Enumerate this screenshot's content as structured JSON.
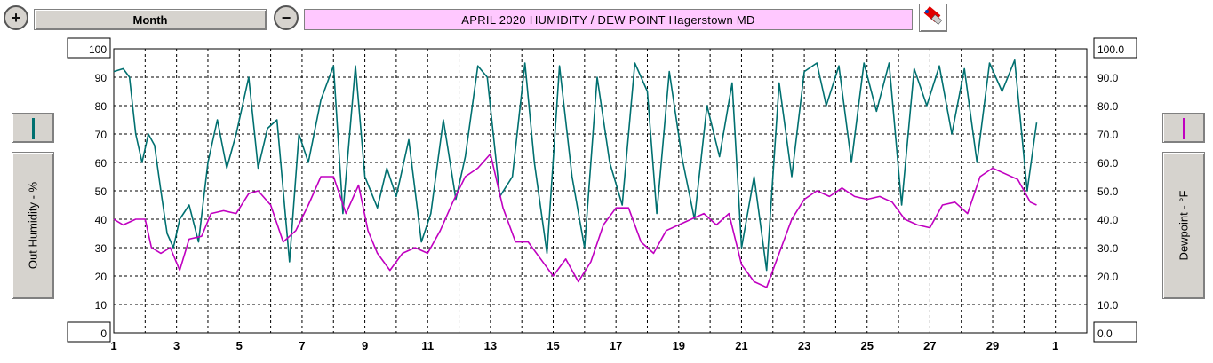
{
  "toolbar": {
    "period_label": "Month",
    "title": "APRIL  2020   HUMIDITY / DEW POINT  Hagerstown MD"
  },
  "left_axis": {
    "label": "Out Humidity - %"
  },
  "right_axis": {
    "label": "Dewpoint - °F"
  },
  "colors": {
    "humidity": "#007070",
    "dewpoint": "#c000c0",
    "title_bg": "#ffc8ff",
    "grid": "#000000"
  },
  "chart_data": {
    "type": "line",
    "x_ticks": [
      "1",
      "3",
      "5",
      "7",
      "9",
      "11",
      "13",
      "15",
      "17",
      "19",
      "21",
      "23",
      "25",
      "27",
      "29",
      "1"
    ],
    "x_tick_days": [
      1,
      3,
      5,
      7,
      9,
      11,
      13,
      15,
      17,
      19,
      21,
      23,
      25,
      27,
      29,
      31
    ],
    "xlim": [
      1,
      32
    ],
    "left_ticks": [
      "100",
      "90",
      "80",
      "70",
      "60",
      "50",
      "40",
      "30",
      "20",
      "10",
      "0"
    ],
    "right_ticks": [
      "100.0",
      "90.0",
      "80.0",
      "70.0",
      "60.0",
      "50.0",
      "40.0",
      "30.0",
      "20.0",
      "10.0",
      "0.0"
    ],
    "ylim": [
      0,
      100
    ],
    "series": [
      {
        "name": "Out Humidity - %",
        "axis": "left",
        "points": [
          [
            1.0,
            92
          ],
          [
            1.3,
            93
          ],
          [
            1.5,
            90
          ],
          [
            1.7,
            70
          ],
          [
            1.9,
            60
          ],
          [
            2.1,
            70
          ],
          [
            2.3,
            66
          ],
          [
            2.5,
            50
          ],
          [
            2.7,
            35
          ],
          [
            2.9,
            30
          ],
          [
            3.1,
            40
          ],
          [
            3.4,
            45
          ],
          [
            3.7,
            32
          ],
          [
            4.0,
            60
          ],
          [
            4.3,
            75
          ],
          [
            4.6,
            58
          ],
          [
            4.9,
            70
          ],
          [
            5.3,
            90
          ],
          [
            5.6,
            58
          ],
          [
            5.9,
            72
          ],
          [
            6.2,
            75
          ],
          [
            6.6,
            25
          ],
          [
            6.9,
            70
          ],
          [
            7.2,
            60
          ],
          [
            7.6,
            82
          ],
          [
            8.0,
            94
          ],
          [
            8.3,
            42
          ],
          [
            8.7,
            94
          ],
          [
            9.0,
            55
          ],
          [
            9.4,
            44
          ],
          [
            9.7,
            58
          ],
          [
            10.0,
            48
          ],
          [
            10.4,
            68
          ],
          [
            10.8,
            32
          ],
          [
            11.1,
            42
          ],
          [
            11.5,
            75
          ],
          [
            11.9,
            47
          ],
          [
            12.2,
            62
          ],
          [
            12.6,
            94
          ],
          [
            12.9,
            90
          ],
          [
            13.3,
            48
          ],
          [
            13.7,
            55
          ],
          [
            14.1,
            95
          ],
          [
            14.4,
            60
          ],
          [
            14.8,
            28
          ],
          [
            15.2,
            94
          ],
          [
            15.6,
            55
          ],
          [
            16.0,
            30
          ],
          [
            16.4,
            90
          ],
          [
            16.8,
            60
          ],
          [
            17.2,
            45
          ],
          [
            17.6,
            95
          ],
          [
            18.0,
            85
          ],
          [
            18.3,
            42
          ],
          [
            18.7,
            92
          ],
          [
            19.1,
            62
          ],
          [
            19.5,
            40
          ],
          [
            19.9,
            80
          ],
          [
            20.3,
            62
          ],
          [
            20.7,
            88
          ],
          [
            21.0,
            30
          ],
          [
            21.4,
            55
          ],
          [
            21.8,
            22
          ],
          [
            22.2,
            88
          ],
          [
            22.6,
            55
          ],
          [
            23.0,
            92
          ],
          [
            23.4,
            95
          ],
          [
            23.7,
            80
          ],
          [
            24.1,
            94
          ],
          [
            24.5,
            60
          ],
          [
            24.9,
            95
          ],
          [
            25.3,
            78
          ],
          [
            25.7,
            95
          ],
          [
            26.1,
            45
          ],
          [
            26.5,
            93
          ],
          [
            26.9,
            80
          ],
          [
            27.3,
            94
          ],
          [
            27.7,
            70
          ],
          [
            28.1,
            93
          ],
          [
            28.5,
            60
          ],
          [
            28.9,
            95
          ],
          [
            29.3,
            85
          ],
          [
            29.7,
            96
          ],
          [
            30.1,
            50
          ],
          [
            30.4,
            74
          ]
        ]
      },
      {
        "name": "Dewpoint - °F",
        "axis": "right",
        "points": [
          [
            1.0,
            40
          ],
          [
            1.3,
            38
          ],
          [
            1.7,
            40
          ],
          [
            2.0,
            40
          ],
          [
            2.2,
            30
          ],
          [
            2.5,
            28
          ],
          [
            2.8,
            30
          ],
          [
            3.1,
            22
          ],
          [
            3.4,
            33
          ],
          [
            3.8,
            34
          ],
          [
            4.1,
            42
          ],
          [
            4.5,
            43
          ],
          [
            4.9,
            42
          ],
          [
            5.3,
            49
          ],
          [
            5.6,
            50
          ],
          [
            6.0,
            45
          ],
          [
            6.4,
            32
          ],
          [
            6.8,
            36
          ],
          [
            7.2,
            45
          ],
          [
            7.6,
            55
          ],
          [
            8.0,
            55
          ],
          [
            8.4,
            42
          ],
          [
            8.8,
            52
          ],
          [
            9.1,
            36
          ],
          [
            9.4,
            28
          ],
          [
            9.8,
            22
          ],
          [
            10.2,
            28
          ],
          [
            10.6,
            30
          ],
          [
            11.0,
            28
          ],
          [
            11.4,
            36
          ],
          [
            11.8,
            46
          ],
          [
            12.2,
            55
          ],
          [
            12.6,
            58
          ],
          [
            13.0,
            63
          ],
          [
            13.4,
            44
          ],
          [
            13.8,
            32
          ],
          [
            14.2,
            32
          ],
          [
            14.6,
            26
          ],
          [
            15.0,
            20
          ],
          [
            15.4,
            26
          ],
          [
            15.8,
            18
          ],
          [
            16.2,
            25
          ],
          [
            16.6,
            38
          ],
          [
            17.0,
            44
          ],
          [
            17.4,
            44
          ],
          [
            17.8,
            32
          ],
          [
            18.2,
            28
          ],
          [
            18.6,
            36
          ],
          [
            19.0,
            38
          ],
          [
            19.4,
            40
          ],
          [
            19.8,
            42
          ],
          [
            20.2,
            38
          ],
          [
            20.6,
            42
          ],
          [
            21.0,
            24
          ],
          [
            21.4,
            18
          ],
          [
            21.8,
            16
          ],
          [
            22.2,
            28
          ],
          [
            22.6,
            40
          ],
          [
            23.0,
            47
          ],
          [
            23.4,
            50
          ],
          [
            23.8,
            48
          ],
          [
            24.2,
            51
          ],
          [
            24.6,
            48
          ],
          [
            25.0,
            47
          ],
          [
            25.4,
            48
          ],
          [
            25.8,
            46
          ],
          [
            26.2,
            40
          ],
          [
            26.6,
            38
          ],
          [
            27.0,
            37
          ],
          [
            27.4,
            45
          ],
          [
            27.8,
            46
          ],
          [
            28.2,
            42
          ],
          [
            28.6,
            55
          ],
          [
            29.0,
            58
          ],
          [
            29.4,
            56
          ],
          [
            29.8,
            54
          ],
          [
            30.2,
            46
          ],
          [
            30.4,
            45
          ]
        ]
      }
    ]
  }
}
